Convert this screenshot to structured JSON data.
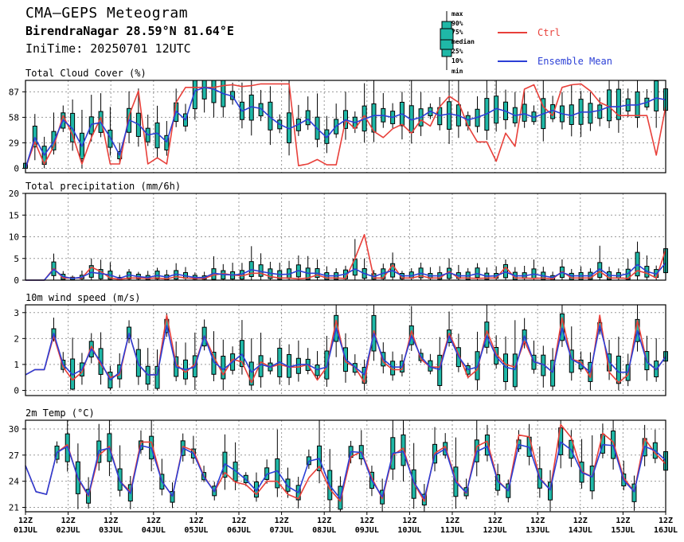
{
  "header": {
    "title": "CMA–GEPS Meteogram",
    "location": "BirendraNagar 28.59°N 81.64°E",
    "init_time": "IniTime: 20250701 12UTC"
  },
  "legend": {
    "box_labels": [
      "max",
      "90%",
      "75%",
      "median",
      "25%",
      "10%",
      "min"
    ],
    "ctrl_label": "Ctrl",
    "mean_label": "Ensemble Mean",
    "ctrl_color": "#e8403a",
    "mean_color": "#2b3fd6",
    "box_color": "#1fb8a7"
  },
  "x_axis": {
    "tick_hour": "12Z",
    "days": [
      "01JUL",
      "02JUL",
      "03JUL",
      "04JUL",
      "05JUL",
      "06JUL",
      "07JUL",
      "08JUL",
      "09JUL",
      "10JUL",
      "11JUL",
      "12JUL",
      "13JUL",
      "14JUL",
      "15JUL",
      "16JUL"
    ],
    "step_hours": 6
  },
  "chart_data": [
    {
      "type": "box",
      "title": "Total Cloud Cover (%)",
      "ylim": [
        -5,
        100
      ],
      "yticks": [
        0,
        29,
        58,
        87
      ],
      "series": [
        {
          "name": "Ctrl",
          "values": [
            0,
            30,
            5,
            25,
            60,
            38,
            5,
            35,
            58,
            5,
            5,
            60,
            88,
            5,
            12,
            5,
            75,
            92,
            92,
            92,
            92,
            94,
            95,
            93,
            94,
            96,
            96,
            96,
            96,
            3,
            5,
            10,
            4,
            4,
            55,
            45,
            60,
            42,
            35,
            45,
            50,
            40,
            55,
            48,
            70,
            82,
            75,
            48,
            30,
            30,
            8,
            40,
            25,
            90,
            95,
            70,
            60,
            92,
            95,
            96,
            88,
            75,
            70,
            60,
            60,
            60,
            60,
            15,
            70
          ]
        },
        {
          "name": "Ensemble Mean",
          "values": [
            0,
            35,
            15,
            30,
            55,
            45,
            25,
            50,
            52,
            35,
            15,
            55,
            50,
            38,
            40,
            30,
            65,
            55,
            88,
            92,
            90,
            85,
            82,
            65,
            70,
            68,
            58,
            50,
            45,
            50,
            56,
            45,
            35,
            48,
            55,
            52,
            56,
            60,
            60,
            58,
            62,
            55,
            58,
            65,
            60,
            62,
            60,
            55,
            58,
            62,
            68,
            65,
            60,
            62,
            58,
            62,
            66,
            62,
            60,
            64,
            64,
            66,
            70,
            70,
            72,
            72,
            75,
            80,
            78
          ]
        }
      ]
    },
    {
      "type": "box",
      "title": "Total precipitation (mm/6h)",
      "ylim": [
        0,
        20
      ],
      "yticks": [
        0,
        5,
        10,
        15,
        20
      ],
      "series": [
        {
          "name": "Ctrl",
          "values": [
            0,
            0,
            0,
            2.7,
            0.5,
            0.5,
            0.5,
            3,
            2,
            0.5,
            0.2,
            0.5,
            0.5,
            0.4,
            0.5,
            0.3,
            0.8,
            0.5,
            0.4,
            0.4,
            1.2,
            1.5,
            1.2,
            1,
            1.6,
            1.6,
            0.8,
            0.5,
            0.5,
            0.3,
            0.5,
            1.2,
            0.5,
            0.5,
            0.4,
            5,
            10.5,
            0.5,
            0.5,
            3.5,
            0.5,
            0.5,
            1,
            0.5,
            0.5,
            2,
            0.5,
            0.5,
            0.4,
            0.5,
            0.5,
            3,
            0.5,
            0.5,
            0.4,
            0.5,
            0.3,
            2,
            0.5,
            0.5,
            0.5,
            2,
            0.5,
            0.5,
            0.4,
            2.2,
            1.6,
            0.5,
            7
          ]
        },
        {
          "name": "Ensemble Mean",
          "values": [
            0,
            0,
            0,
            2.5,
            0.8,
            0.4,
            0.7,
            1.8,
            1.5,
            1.2,
            0.4,
            1.2,
            0.8,
            0.6,
            1.1,
            0.7,
            1.4,
            1,
            0.6,
            0.6,
            1.6,
            1.3,
            1.2,
            1.4,
            2.4,
            2,
            1.6,
            1.3,
            1.4,
            2.2,
            1.6,
            1.6,
            1,
            1,
            1.4,
            2.6,
            1.5,
            0.8,
            1.6,
            2.2,
            1,
            1,
            1.6,
            1,
            1,
            1.7,
            1,
            1,
            1.5,
            0.9,
            1,
            1.9,
            1,
            1,
            1.4,
            1,
            0.6,
            1.8,
            1,
            1,
            1,
            2.6,
            1.1,
            1,
            1.5,
            3.6,
            2,
            1.4,
            4
          ]
        }
      ]
    },
    {
      "type": "box",
      "title": "10m wind speed (m/s)",
      "ylim": [
        -0.2,
        3.3
      ],
      "yticks": [
        0,
        1,
        2,
        3
      ],
      "series": [
        {
          "name": "Ctrl",
          "values": [
            0.6,
            0.8,
            0.8,
            2.1,
            0.9,
            0.4,
            0.7,
            1.7,
            1,
            0.5,
            0.6,
            2.2,
            1,
            0.6,
            0.6,
            2.9,
            1,
            0.7,
            1,
            2.1,
            1.3,
            0.6,
            1.2,
            1.1,
            0.3,
            1.1,
            0.9,
            1,
            0.9,
            0.9,
            1,
            0.4,
            0.9,
            2.7,
            1.1,
            0.9,
            0.3,
            2.3,
            1.1,
            0.8,
            0.8,
            2.3,
            1.2,
            0.9,
            0.9,
            2.2,
            1.4,
            0.5,
            0.8,
            2.3,
            1.4,
            1,
            0.9,
            1.9,
            1.1,
            1,
            0.7,
            2.8,
            1.2,
            1.1,
            0.5,
            2.9,
            0.7,
            0.3,
            0.6,
            2.7,
            1.1,
            0.8,
            1.3
          ]
        },
        {
          "name": "Ensemble Mean",
          "values": [
            0.6,
            0.8,
            0.8,
            2.2,
            1,
            0.6,
            0.8,
            1.6,
            1.1,
            0.4,
            0.7,
            2.2,
            1,
            0.6,
            0.6,
            2.5,
            0.9,
            0.8,
            0.9,
            2.1,
            1.1,
            0.8,
            1.1,
            1.4,
            0.7,
            1,
            0.9,
            1.1,
            0.9,
            1,
            1,
            0.8,
            0.9,
            2.4,
            1.2,
            0.9,
            0.6,
            2.2,
            1.2,
            0.9,
            0.9,
            2.1,
            1.3,
            0.9,
            0.8,
            2.1,
            1.3,
            0.8,
            0.9,
            2.1,
            1.3,
            0.9,
            0.8,
            2.1,
            1.1,
            1,
            0.7,
            2.4,
            1.2,
            1,
            0.7,
            2.5,
            1.1,
            0.7,
            0.7,
            2.3,
            1.1,
            0.8,
            1.3
          ]
        }
      ]
    },
    {
      "type": "box",
      "title": "2m Temp (°C)",
      "ylim": [
        20.5,
        31
      ],
      "yticks": [
        21,
        24,
        27,
        30
      ],
      "series": [
        {
          "name": "Ctrl",
          "values": [
            25.8,
            22.8,
            22.5,
            27.3,
            28.2,
            24.3,
            22.3,
            27,
            28,
            24,
            22.8,
            28.5,
            28.5,
            24,
            22.3,
            28,
            27.5,
            24.6,
            22.8,
            25,
            23.9,
            23.6,
            22.5,
            24,
            24,
            22.5,
            22,
            24.4,
            25.7,
            23.1,
            21.7,
            26.8,
            27.4,
            24.4,
            22,
            27,
            27.8,
            23.8,
            21.7,
            27.2,
            28,
            24.1,
            22.6,
            28,
            28.6,
            24.1,
            22.9,
            29.3,
            29.1,
            24.4,
            23,
            30.5,
            29,
            25.1,
            24.5,
            29.5,
            28.5,
            24.4,
            22.8,
            28.9,
            27.2,
            26
          ]
        },
        {
          "name": "Ensemble Mean",
          "values": [
            25.8,
            22.8,
            22.5,
            27.3,
            28,
            24.4,
            22.4,
            27.5,
            27.8,
            24,
            22.6,
            28.1,
            27.8,
            24,
            22.3,
            27.8,
            27.2,
            24.5,
            22.8,
            26,
            25.2,
            24.2,
            22.9,
            24.8,
            25.2,
            23.4,
            22.7,
            26.3,
            26.6,
            23.5,
            22,
            27.4,
            27.3,
            24.1,
            22.2,
            27.2,
            27.4,
            23.9,
            22,
            27,
            27.7,
            23.9,
            22.7,
            27.4,
            28,
            24,
            22.9,
            28.2,
            27.9,
            24.3,
            23,
            28.5,
            27.6,
            25,
            24.5,
            28.2,
            28.1,
            24.1,
            22.8,
            28,
            27.5,
            26.4
          ]
        }
      ]
    }
  ]
}
